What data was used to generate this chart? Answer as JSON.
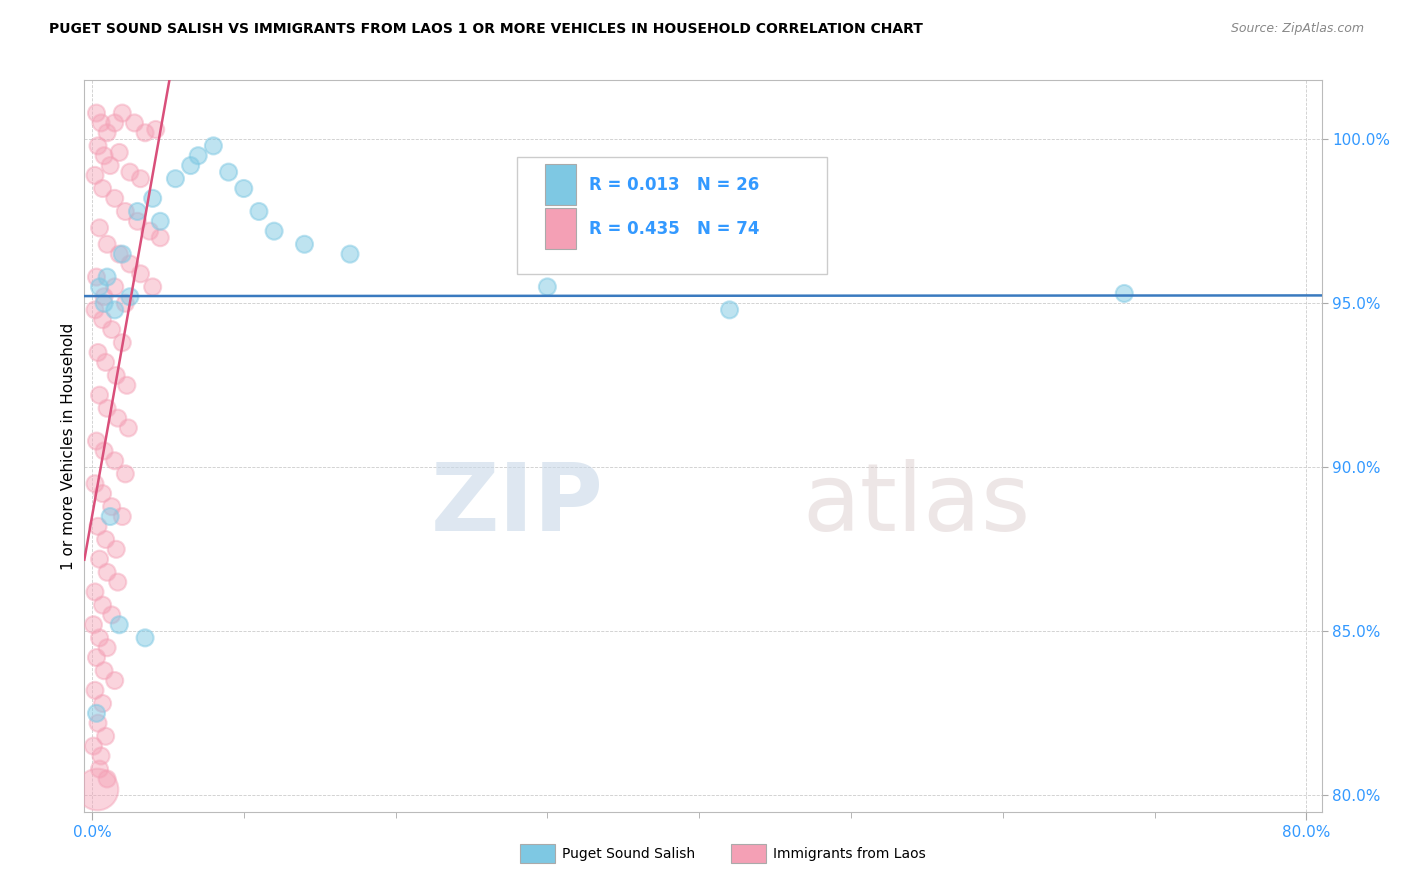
{
  "title": "PUGET SOUND SALISH VS IMMIGRANTS FROM LAOS 1 OR MORE VEHICLES IN HOUSEHOLD CORRELATION CHART",
  "source": "Source: ZipAtlas.com",
  "ylabel": "1 or more Vehicles in Household",
  "ymin": 79.5,
  "ymax": 101.8,
  "xmin": -0.5,
  "xmax": 81.0,
  "yticks": [
    80,
    85,
    90,
    95,
    100
  ],
  "xticks": [
    0,
    80
  ],
  "r_blue": "R = 0.013",
  "n_blue": "N = 26",
  "r_pink": "R = 0.435",
  "n_pink": "N = 74",
  "color_blue": "#7ec8e3",
  "color_pink": "#f4a0b5",
  "trendline_blue_color": "#3a7abf",
  "trendline_pink_color": "#d94f7a",
  "legend_blue_label": "Puget Sound Salish",
  "legend_pink_label": "Immigrants from Laos",
  "watermark_zip": "ZIP",
  "watermark_atlas": "atlas",
  "blue_points": [
    [
      0.5,
      95.5
    ],
    [
      1.0,
      95.8
    ],
    [
      1.5,
      94.8
    ],
    [
      2.0,
      96.5
    ],
    [
      3.0,
      97.8
    ],
    [
      4.0,
      98.2
    ],
    [
      4.5,
      97.5
    ],
    [
      5.5,
      98.8
    ],
    [
      6.5,
      99.2
    ],
    [
      7.0,
      99.5
    ],
    [
      8.0,
      99.8
    ],
    [
      9.0,
      99.0
    ],
    [
      10.0,
      98.5
    ],
    [
      11.0,
      97.8
    ],
    [
      12.0,
      97.2
    ],
    [
      14.0,
      96.8
    ],
    [
      17.0,
      96.5
    ],
    [
      1.2,
      88.5
    ],
    [
      3.5,
      84.8
    ],
    [
      0.3,
      82.5
    ],
    [
      1.8,
      85.2
    ],
    [
      30.0,
      95.5
    ],
    [
      68.0,
      95.3
    ],
    [
      42.0,
      94.8
    ],
    [
      2.5,
      95.2
    ],
    [
      0.8,
      95.0
    ]
  ],
  "pink_points": [
    [
      0.3,
      100.8
    ],
    [
      0.6,
      100.5
    ],
    [
      1.0,
      100.2
    ],
    [
      1.5,
      100.5
    ],
    [
      2.0,
      100.8
    ],
    [
      2.8,
      100.5
    ],
    [
      3.5,
      100.2
    ],
    [
      4.2,
      100.3
    ],
    [
      0.4,
      99.8
    ],
    [
      0.8,
      99.5
    ],
    [
      1.2,
      99.2
    ],
    [
      1.8,
      99.6
    ],
    [
      2.5,
      99.0
    ],
    [
      3.2,
      98.8
    ],
    [
      0.2,
      98.9
    ],
    [
      0.7,
      98.5
    ],
    [
      1.5,
      98.2
    ],
    [
      2.2,
      97.8
    ],
    [
      3.0,
      97.5
    ],
    [
      3.8,
      97.2
    ],
    [
      4.5,
      97.0
    ],
    [
      0.5,
      97.3
    ],
    [
      1.0,
      96.8
    ],
    [
      1.8,
      96.5
    ],
    [
      2.5,
      96.2
    ],
    [
      3.2,
      95.9
    ],
    [
      4.0,
      95.5
    ],
    [
      0.3,
      95.8
    ],
    [
      0.8,
      95.2
    ],
    [
      1.5,
      95.5
    ],
    [
      2.2,
      95.0
    ],
    [
      0.2,
      94.8
    ],
    [
      0.7,
      94.5
    ],
    [
      1.3,
      94.2
    ],
    [
      2.0,
      93.8
    ],
    [
      0.4,
      93.5
    ],
    [
      0.9,
      93.2
    ],
    [
      1.6,
      92.8
    ],
    [
      2.3,
      92.5
    ],
    [
      0.5,
      92.2
    ],
    [
      1.0,
      91.8
    ],
    [
      1.7,
      91.5
    ],
    [
      2.4,
      91.2
    ],
    [
      0.3,
      90.8
    ],
    [
      0.8,
      90.5
    ],
    [
      1.5,
      90.2
    ],
    [
      2.2,
      89.8
    ],
    [
      0.2,
      89.5
    ],
    [
      0.7,
      89.2
    ],
    [
      1.3,
      88.8
    ],
    [
      2.0,
      88.5
    ],
    [
      0.4,
      88.2
    ],
    [
      0.9,
      87.8
    ],
    [
      1.6,
      87.5
    ],
    [
      0.5,
      87.2
    ],
    [
      1.0,
      86.8
    ],
    [
      1.7,
      86.5
    ],
    [
      0.2,
      86.2
    ],
    [
      0.7,
      85.8
    ],
    [
      1.3,
      85.5
    ],
    [
      0.1,
      85.2
    ],
    [
      0.5,
      84.8
    ],
    [
      1.0,
      84.5
    ],
    [
      0.3,
      84.2
    ],
    [
      0.8,
      83.8
    ],
    [
      1.5,
      83.5
    ],
    [
      0.2,
      83.2
    ],
    [
      0.7,
      82.8
    ],
    [
      0.4,
      82.2
    ],
    [
      0.9,
      81.8
    ],
    [
      0.1,
      81.5
    ],
    [
      0.6,
      81.2
    ],
    [
      0.5,
      80.8
    ],
    [
      1.0,
      80.5
    ],
    [
      0.3,
      80.2
    ]
  ],
  "blue_point_sizes": [
    150,
    150,
    150,
    150,
    150,
    150,
    150,
    150,
    150,
    150,
    150,
    150,
    150,
    150,
    150,
    150,
    150,
    150,
    150,
    150,
    150,
    150,
    150,
    150,
    150,
    150
  ],
  "pink_point_sizes": [
    150,
    150,
    150,
    150,
    150,
    150,
    150,
    150,
    150,
    150,
    150,
    150,
    150,
    150,
    150,
    150,
    150,
    150,
    150,
    150,
    150,
    150,
    150,
    150,
    150,
    150,
    150,
    150,
    150,
    150,
    150,
    150,
    150,
    150,
    150,
    150,
    150,
    150,
    150,
    150,
    150,
    150,
    150,
    150,
    150,
    150,
    150,
    150,
    150,
    150,
    150,
    150,
    150,
    150,
    150,
    150,
    150,
    150,
    150,
    150,
    150,
    150,
    150,
    150,
    150,
    150,
    150,
    150,
    150,
    150,
    150,
    150,
    150,
    150,
    900
  ]
}
